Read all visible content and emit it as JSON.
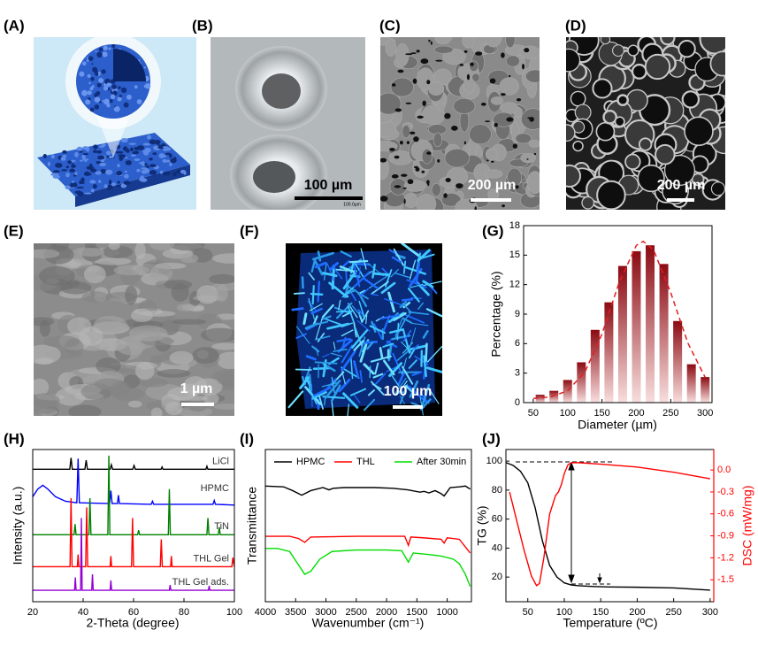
{
  "panel_labels": [
    "(A)",
    "(B)",
    "(C)",
    "(D)",
    "(E)",
    "(F)",
    "(G)",
    "(H)",
    "(I)",
    "(J)"
  ],
  "images": {
    "B": {
      "scale_bar": "100 µm",
      "inset_scale": "100.0µm"
    },
    "C": {
      "scale_bar": "200 µm"
    },
    "D": {
      "scale_bar": "200 µm"
    },
    "E": {
      "scale_bar": "1 µm"
    },
    "F": {
      "scale_bar": "100 µm"
    }
  },
  "chart_data": [
    {
      "type": "bar",
      "xlabel": "Diameter (µm)",
      "ylabel": "Percentage (%)",
      "x": [
        60,
        80,
        100,
        120,
        140,
        160,
        180,
        200,
        220,
        240,
        260,
        280,
        300
      ],
      "values": [
        0.8,
        1.2,
        2.3,
        4.1,
        7.4,
        10.2,
        13.9,
        15.4,
        16,
        14.1,
        8.3,
        3.9,
        2.6
      ],
      "color": "#8b0a12",
      "fit": {
        "x": [
          50,
          75,
          100,
          125,
          150,
          175,
          200,
          210,
          225,
          250,
          275,
          300
        ],
        "values": [
          0.43,
          0.58,
          1.2,
          3.09,
          6.98,
          12.23,
          16.0,
          16.4,
          15.53,
          11.18,
          6.04,
          2.57
        ],
        "color": "#e02020"
      },
      "xlim": [
        36,
        310
      ],
      "ylim": [
        0,
        18
      ],
      "xticks": [
        50,
        100,
        150,
        200,
        250,
        300
      ],
      "yticks": [
        0,
        3,
        6,
        9,
        12,
        15,
        18
      ]
    },
    {
      "type": "line",
      "xlabel": "2-Theta (degree)",
      "ylabel": "Intensity (a.u.)",
      "legend": "inline",
      "xlim": [
        20,
        100
      ],
      "ylim": [
        0,
        10
      ],
      "xticks": [
        20,
        40,
        60,
        80,
        100
      ],
      "series": [
        {
          "name": "LiCl",
          "color": "#000000",
          "x": [
            20,
            34.7,
            35.2,
            35.7,
            40.7,
            41.2,
            41.7,
            50.7,
            51.2,
            51.7,
            59.7,
            60.2,
            60.7,
            70.9,
            71.3,
            71.7,
            88.7,
            89.1,
            89.5,
            100
          ],
          "values": [
            8.7,
            8.7,
            9.45,
            8.7,
            8.7,
            9.3,
            8.7,
            8.7,
            9.0,
            8.7,
            8.7,
            8.95,
            8.7,
            8.7,
            8.85,
            8.7,
            8.7,
            8.9,
            8.7,
            8.7
          ]
        },
        {
          "name": "HPMC",
          "color": "#0000ff",
          "x": [
            20,
            22,
            24,
            26,
            29,
            33,
            37.5,
            38,
            38.5,
            50.5,
            51,
            51.5,
            53.6,
            54,
            54.4,
            67,
            67.5,
            68,
            91.5,
            92,
            92.5,
            100
          ],
          "values": [
            6.9,
            7.4,
            7.65,
            7.4,
            6.9,
            6.6,
            6.5,
            9.4,
            6.5,
            6.45,
            7.3,
            6.45,
            6.45,
            7.0,
            6.45,
            6.4,
            6.6,
            6.4,
            6.4,
            6.65,
            6.4,
            6.35
          ]
        },
        {
          "name": "TiN",
          "color": "#008000",
          "x": [
            20,
            36.4,
            36.8,
            37.2,
            42.3,
            42.7,
            43.1,
            49.8,
            50.2,
            50.6,
            61.6,
            62,
            62.4,
            73.8,
            74.2,
            74.6,
            89.1,
            89.5,
            89.9,
            93.6,
            94,
            94.4,
            100
          ],
          "values": [
            4.4,
            4.4,
            5.1,
            4.4,
            4.4,
            6.8,
            4.4,
            4.4,
            9.6,
            4.4,
            4.4,
            4.7,
            4.4,
            4.4,
            7.4,
            4.4,
            4.4,
            5.5,
            4.4,
            4.4,
            4.9,
            4.4,
            4.4
          ]
        },
        {
          "name": "THL Gel",
          "color": "#ff0000",
          "x": [
            20,
            34.8,
            35.2,
            35.6,
            37.7,
            38,
            38.3,
            41,
            41.4,
            41.8,
            50.7,
            51,
            51.3,
            59.2,
            59.6,
            60,
            70.6,
            71,
            71.4,
            74.7,
            75,
            75.3,
            99,
            99.4,
            100
          ],
          "values": [
            2.3,
            2.3,
            6.8,
            2.3,
            2.3,
            3.1,
            2.3,
            2.3,
            6.2,
            2.3,
            2.3,
            3.0,
            2.3,
            2.3,
            5.5,
            2.3,
            2.3,
            4.1,
            2.3,
            2.3,
            3.0,
            2.3,
            2.3,
            2.9,
            2.3
          ]
        },
        {
          "name": "THL Gel ads.",
          "color": "#9400d3",
          "x": [
            20,
            36.6,
            36.9,
            37.2,
            39,
            39.3,
            39.6,
            43.4,
            43.7,
            44,
            50.7,
            51,
            51.3,
            74.2,
            74.5,
            74.8,
            89.7,
            90,
            90.3,
            100
          ],
          "values": [
            0.75,
            0.75,
            1.6,
            0.75,
            0.75,
            5.5,
            0.75,
            0.75,
            1.8,
            0.75,
            0.75,
            1.4,
            0.75,
            0.75,
            1.1,
            0.75,
            0.75,
            1.05,
            0.75,
            0.75
          ]
        }
      ]
    },
    {
      "type": "line",
      "xlabel": "Wavenumber (cm⁻¹)",
      "ylabel": "Transmittance",
      "legend": "top",
      "xlim": [
        4000,
        600
      ],
      "ylim": [
        0,
        10
      ],
      "xticks": [
        4000,
        3500,
        3000,
        2500,
        2000,
        1500,
        1000
      ],
      "series": [
        {
          "name": "HPMC",
          "color": "#000000",
          "x": [
            4000,
            3700,
            3550,
            3400,
            3250,
            3050,
            2950,
            2880,
            2700,
            2200,
            1900,
            1650,
            1450,
            1380,
            1300,
            1200,
            1100,
            1050,
            950,
            800,
            700,
            620
          ],
          "values": [
            7.6,
            7.55,
            7.3,
            7.0,
            7.3,
            7.5,
            7.35,
            7.45,
            7.5,
            7.5,
            7.45,
            7.35,
            7.2,
            7.25,
            7.15,
            7.3,
            7.1,
            6.95,
            7.5,
            7.55,
            7.6,
            7.4
          ]
        },
        {
          "name": "THL",
          "color": "#ff0000",
          "x": [
            4000,
            3600,
            3450,
            3350,
            3250,
            2500,
            1700,
            1640,
            1600,
            1400,
            1100,
            1050,
            1000,
            800,
            700,
            620
          ],
          "values": [
            4.3,
            4.3,
            4.15,
            3.9,
            4.25,
            4.3,
            4.3,
            3.7,
            4.25,
            4.2,
            4.1,
            3.85,
            4.2,
            4.1,
            3.6,
            3.2
          ]
        },
        {
          "name": "After 30min",
          "color": "#00dd00",
          "x": [
            4000,
            3800,
            3600,
            3450,
            3350,
            3250,
            3100,
            2900,
            2500,
            2000,
            1750,
            1640,
            1560,
            1300,
            1100,
            1000,
            900,
            800,
            700,
            620
          ],
          "values": [
            3.5,
            3.5,
            3.3,
            2.4,
            1.8,
            2.0,
            2.8,
            3.3,
            3.4,
            3.4,
            3.35,
            2.6,
            3.2,
            3.1,
            3.0,
            2.9,
            2.8,
            2.5,
            1.8,
            1.0
          ]
        }
      ]
    },
    {
      "type": "line",
      "xlabel": "Temperature (ºC)",
      "ylabel": "TG (%)",
      "y2label": "DSC (mW/mg)",
      "y2color": "#ff0000",
      "xlim": [
        20,
        305
      ],
      "ylim": [
        3,
        108
      ],
      "y2lim": [
        -1.8,
        0.28
      ],
      "xticks": [
        50,
        100,
        150,
        200,
        250,
        300
      ],
      "yticks": [
        20,
        40,
        60,
        80,
        100
      ],
      "y2ticks": [
        {
          "value": 0,
          "label": "0.0"
        },
        -0.3,
        -0.6,
        -0.9,
        -1.2,
        -1.5
      ],
      "series": [
        {
          "color": "#000000",
          "x": [
            20,
            30,
            40,
            50,
            60,
            70,
            80,
            90,
            100,
            110,
            120,
            140,
            160,
            200,
            250,
            300
          ],
          "values": [
            99,
            97,
            93,
            85,
            68,
            45,
            28,
            20,
            16,
            14.5,
            14,
            13.5,
            13.2,
            13,
            12.5,
            11
          ]
        },
        {
          "color": "#ff0000",
          "axis": "y2",
          "x": [
            25,
            35,
            45,
            55,
            62,
            66,
            72,
            80,
            88,
            92,
            96,
            100,
            105,
            110,
            120,
            150,
            200,
            250,
            300
          ],
          "values": [
            -0.3,
            -0.7,
            -1.1,
            -1.45,
            -1.58,
            -1.55,
            -1.2,
            -0.6,
            -0.35,
            -0.3,
            -0.2,
            -0.05,
            0.07,
            0.1,
            0.1,
            0.08,
            0.04,
            -0.03,
            -0.12
          ]
        }
      ]
    }
  ]
}
